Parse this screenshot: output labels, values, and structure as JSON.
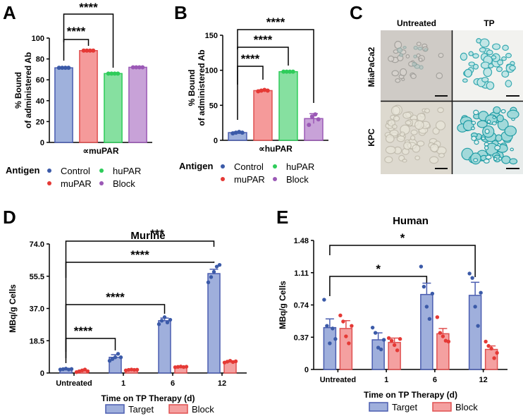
{
  "panels": {
    "A": {
      "letter": "A"
    },
    "B": {
      "letter": "B"
    },
    "C": {
      "letter": "C",
      "col_labels": [
        "Untreated",
        "TP"
      ],
      "row_labels": [
        "MiaPaCa2",
        "KPC"
      ]
    },
    "D": {
      "letter": "D"
    },
    "E": {
      "letter": "E"
    }
  },
  "legend_ab": {
    "title": "Antigen",
    "items": [
      {
        "name": "Control",
        "color": "#3b5aa8"
      },
      {
        "name": "huPAR",
        "color": "#2ecc5a"
      },
      {
        "name": "muPAR",
        "color": "#e53935"
      },
      {
        "name": "Block",
        "color": "#9b59b6"
      }
    ]
  },
  "legend_de": {
    "items": [
      {
        "name": "Target",
        "fill": "#9fafdc",
        "stroke": "#4a5db0"
      },
      {
        "name": "Block",
        "fill": "#f4a0a0",
        "stroke": "#e05050"
      }
    ]
  },
  "chart_data": [
    {
      "id": "A",
      "type": "bar",
      "title": "",
      "xlabel": "∝muPAR",
      "ylabel": "% Bound of administered Ab",
      "ylim": [
        0,
        100
      ],
      "yticks": [
        "0",
        "20",
        "40",
        "60",
        "80",
        "100"
      ],
      "categories": [
        "Control",
        "muPAR",
        "huPAR",
        "Block"
      ],
      "values": [
        71.5,
        88,
        66,
        72
      ],
      "colors": [
        "#9fb1dc",
        "#f59a9a",
        "#86e0a0",
        "#c8a2d8"
      ],
      "strokes": [
        "#4a5db0",
        "#e05050",
        "#2ecc5a",
        "#9b59b6"
      ],
      "dotcolors": [
        "#3b5aa8",
        "#e53935",
        "#2ecc5a",
        "#9b59b6"
      ],
      "points": [
        [
          71.5,
          71.5,
          71.5,
          71.5
        ],
        [
          88,
          88,
          88,
          88
        ],
        [
          66,
          66,
          66,
          66
        ],
        [
          72,
          72,
          72,
          72
        ]
      ],
      "significance": [
        {
          "from": 0,
          "to": 1,
          "label": "****"
        },
        {
          "from": 0,
          "to": 2,
          "label": "****"
        }
      ]
    },
    {
      "id": "B",
      "type": "bar",
      "title": "",
      "xlabel": "∝huPAR",
      "ylabel": "% Bound of administered Ab",
      "ylim": [
        0,
        150
      ],
      "yticks": [
        "0",
        "50",
        "100",
        "150"
      ],
      "categories": [
        "Control",
        "muPAR",
        "huPAR",
        "Block"
      ],
      "values": [
        11,
        71,
        98,
        31
      ],
      "errors": [
        1,
        1,
        1,
        7
      ],
      "colors": [
        "#9fb1dc",
        "#f59a9a",
        "#86e0a0",
        "#c8a2d8"
      ],
      "strokes": [
        "#4a5db0",
        "#e05050",
        "#2ecc5a",
        "#9b59b6"
      ],
      "dotcolors": [
        "#3b5aa8",
        "#e53935",
        "#2ecc5a",
        "#9b59b6"
      ],
      "points": [
        [
          10,
          11,
          12,
          11
        ],
        [
          70,
          71,
          72,
          71
        ],
        [
          98,
          98,
          98,
          98
        ],
        [
          22,
          34,
          37,
          30
        ]
      ],
      "significance": [
        {
          "from": 0,
          "to": 1,
          "label": "****"
        },
        {
          "from": 0,
          "to": 2,
          "label": "****"
        },
        {
          "from": 0,
          "to": 3,
          "label": "****"
        }
      ]
    },
    {
      "id": "D",
      "type": "bar",
      "title": "Murine",
      "xlabel": "Time on TP Therapy (d)",
      "ylabel": "MBq/g Cells",
      "ylim": [
        0,
        74
      ],
      "yticks": [
        "0",
        "18.5",
        "37.0",
        "55.5",
        "74.0"
      ],
      "categories": [
        "Untreated",
        "1",
        "6",
        "12"
      ],
      "series": [
        {
          "name": "Target",
          "values": [
            2.2,
            9,
            30,
            57
          ],
          "errors": [
            0.3,
            1.5,
            1.5,
            2.5
          ],
          "points": [
            [
              2,
              2.2,
              2.5,
              2,
              2.3
            ],
            [
              7,
              8,
              9,
              11,
              9
            ],
            [
              28,
              30,
              32,
              29,
              30.5
            ],
            [
              52,
              55,
              58,
              61,
              62
            ]
          ]
        },
        {
          "name": "Block",
          "values": [
            1.2,
            1.8,
            3.5,
            6.5
          ],
          "errors": [
            0.4,
            0.2,
            0.3,
            0.4
          ],
          "points": [
            [
              0.5,
              1,
              1.5,
              2,
              1
            ],
            [
              1.5,
              1.8,
              2,
              1.8,
              1.9
            ],
            [
              3.3,
              3.5,
              3.7,
              3.4,
              3.6
            ],
            [
              6,
              6.5,
              7,
              6.3,
              6.7
            ]
          ]
        }
      ],
      "significance": [
        {
          "from": 0,
          "to": 1,
          "label": "****"
        },
        {
          "from": 0,
          "to": 2,
          "label": "****"
        },
        {
          "from": 0,
          "to": 3,
          "label": "****"
        },
        {
          "from": 0,
          "to": 3,
          "label": "***"
        }
      ]
    },
    {
      "id": "E",
      "type": "bar",
      "title": "Human",
      "xlabel": "Time on TP Therapy (d)",
      "ylabel": "MBq/g Cells",
      "ylim": [
        0,
        1.48
      ],
      "yticks": [
        "0",
        "0.37",
        "0.74",
        "1.11",
        "1.48"
      ],
      "categories": [
        "Untreated",
        "1",
        "6",
        "12"
      ],
      "series": [
        {
          "name": "Target",
          "values": [
            0.48,
            0.34,
            0.86,
            0.85
          ],
          "errors": [
            0.1,
            0.08,
            0.13,
            0.15
          ],
          "points": [
            [
              0.8,
              0.5,
              0.3,
              0.47,
              0.35
            ],
            [
              0.48,
              0.42,
              0.25,
              0.23,
              0.34
            ],
            [
              1.18,
              0.95,
              0.72,
              0.58,
              0.87
            ],
            [
              1.1,
              1.05,
              0.72,
              0.5,
              0.88
            ]
          ]
        },
        {
          "name": "Block",
          "values": [
            0.47,
            0.31,
            0.41,
            0.23
          ],
          "errors": [
            0.09,
            0.05,
            0.06,
            0.04
          ],
          "points": [
            [
              0.62,
              0.55,
              0.38,
              0.3,
              0.5
            ],
            [
              0.36,
              0.33,
              0.28,
              0.22,
              0.35
            ],
            [
              0.6,
              0.42,
              0.38,
              0.33,
              0.32
            ],
            [
              0.32,
              0.27,
              0.24,
              0.13,
              0.19
            ]
          ]
        }
      ],
      "significance": [
        {
          "from": 0,
          "to": 2,
          "label": "*"
        },
        {
          "from": 0,
          "to": 3,
          "label": "*"
        }
      ]
    }
  ]
}
